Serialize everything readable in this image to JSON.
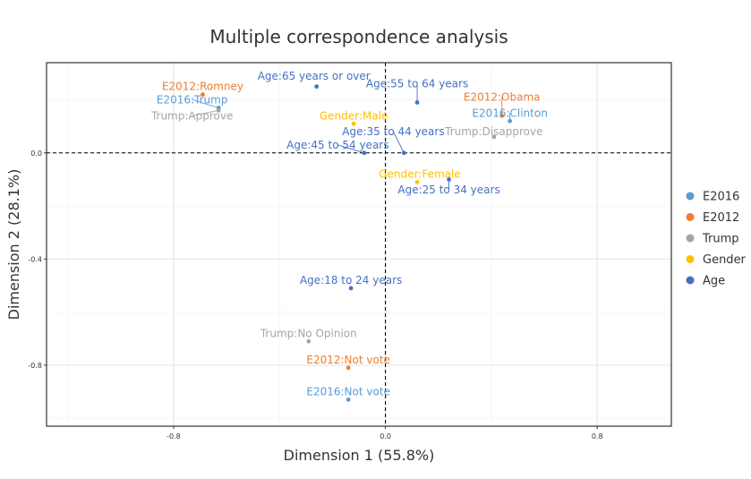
{
  "chart_data": {
    "type": "scatter",
    "title": "Multiple correspondence analysis",
    "xlabel": "Dimension 1 (55.8%)",
    "ylabel": "Dimension 2 (28.1%)",
    "xlim": [
      -1.28,
      1.08
    ],
    "ylim": [
      -1.03,
      0.34
    ],
    "xticks": [
      -0.8,
      0.0,
      0.8
    ],
    "yticks": [
      0.0,
      -0.4,
      -0.8
    ],
    "xtick_labels": [
      "-0.8",
      "0.0",
      "0.8"
    ],
    "ytick_labels": [
      "0.0",
      "-0.4",
      "-0.8"
    ],
    "grid": true,
    "reference_lines": {
      "x": 0,
      "y": 0,
      "style": "dashed"
    },
    "legend": {
      "position": "right",
      "entries": [
        {
          "name": "E2016",
          "color": "#5B9BD5"
        },
        {
          "name": "E2012",
          "color": "#ED7D31"
        },
        {
          "name": "Trump",
          "color": "#A5A5A5"
        },
        {
          "name": "Gender",
          "color": "#FFC000"
        },
        {
          "name": "Age",
          "color": "#4472C4"
        }
      ]
    },
    "points": [
      {
        "group": "E2012",
        "label": "E2012:Romney",
        "x": -0.69,
        "y": 0.22,
        "label_x": -0.69,
        "label_y": 0.25
      },
      {
        "group": "E2016",
        "label": "E2016:Trump",
        "x": -0.63,
        "y": 0.17,
        "label_x": -0.73,
        "label_y": 0.2,
        "leader": true
      },
      {
        "group": "Trump",
        "label": "Trump:Approve",
        "x": -0.63,
        "y": 0.16,
        "label_x": -0.73,
        "label_y": 0.14,
        "leader": true
      },
      {
        "group": "Age",
        "label": "Age:65 years or over",
        "x": -0.26,
        "y": 0.25,
        "label_x": -0.27,
        "label_y": 0.29
      },
      {
        "group": "Age",
        "label": "Age:55 to 64 years",
        "x": 0.12,
        "y": 0.19,
        "label_x": 0.12,
        "label_y": 0.26,
        "leader": true
      },
      {
        "group": "E2012",
        "label": "E2012:Obama",
        "x": 0.44,
        "y": 0.14,
        "label_x": 0.44,
        "label_y": 0.21,
        "leader": true
      },
      {
        "group": "E2016",
        "label": "E2016:Clinton",
        "x": 0.47,
        "y": 0.12,
        "label_x": 0.47,
        "label_y": 0.15,
        "leader": true
      },
      {
        "group": "Gender",
        "label": "Gender:Male",
        "x": -0.12,
        "y": 0.11,
        "label_x": -0.12,
        "label_y": 0.14
      },
      {
        "group": "Trump",
        "label": "Trump:Disapprove",
        "x": 0.41,
        "y": 0.06,
        "label_x": 0.41,
        "label_y": 0.08
      },
      {
        "group": "Age",
        "label": "Age:35 to 44 years",
        "x": 0.07,
        "y": 0.0,
        "label_x": 0.03,
        "label_y": 0.08,
        "leader": true
      },
      {
        "group": "Age",
        "label": "Age:45 to 54 years",
        "x": -0.08,
        "y": 0.0,
        "label_x": -0.18,
        "label_y": 0.03,
        "leader": true
      },
      {
        "group": "Gender",
        "label": "Gender:Female",
        "x": 0.12,
        "y": -0.11,
        "label_x": 0.13,
        "label_y": -0.08
      },
      {
        "group": "Age",
        "label": "Age:25 to 34 years",
        "x": 0.24,
        "y": -0.1,
        "label_x": 0.24,
        "label_y": -0.14,
        "leader": true
      },
      {
        "group": "Age",
        "label": "Age:18 to 24 years",
        "x": -0.13,
        "y": -0.51,
        "label_x": -0.13,
        "label_y": -0.48
      },
      {
        "group": "Trump",
        "label": "Trump:No Opinion",
        "x": -0.29,
        "y": -0.71,
        "label_x": -0.29,
        "label_y": -0.68
      },
      {
        "group": "E2012",
        "label": "E2012:Not vote",
        "x": -0.14,
        "y": -0.81,
        "label_x": -0.14,
        "label_y": -0.78
      },
      {
        "group": "E2016",
        "label": "E2016:Not vote",
        "x": -0.14,
        "y": -0.93,
        "label_x": -0.14,
        "label_y": -0.9
      }
    ]
  }
}
